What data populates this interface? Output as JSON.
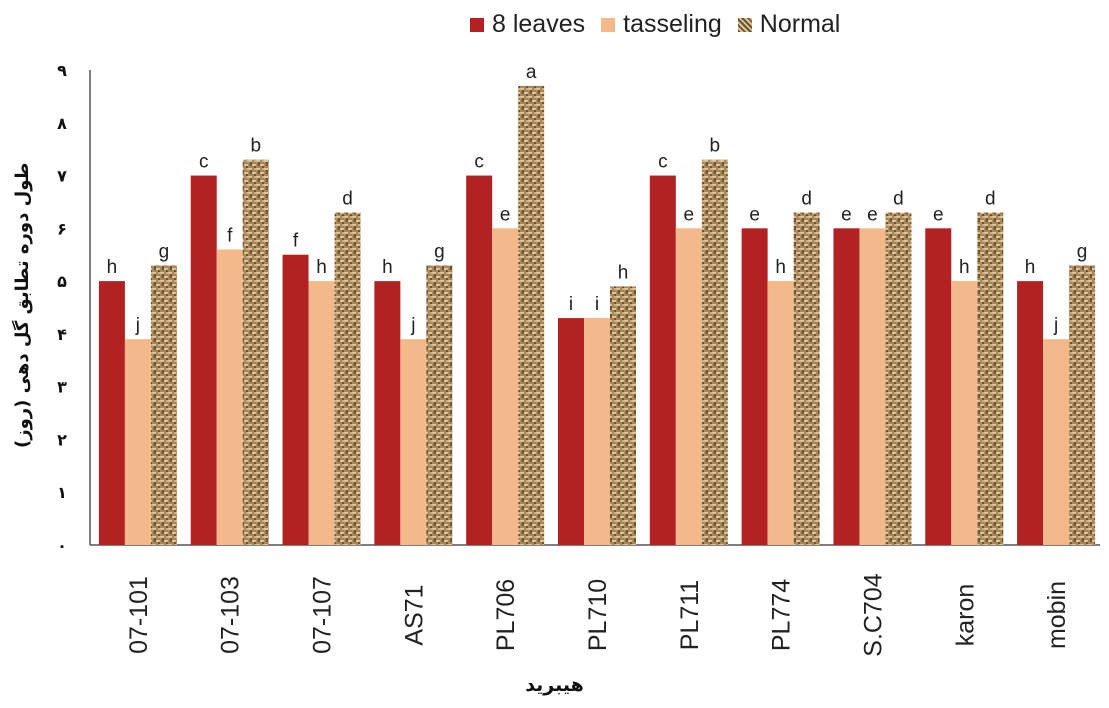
{
  "chart_data": {
    "type": "bar",
    "categories": [
      "07-101",
      "07-103",
      "07-107",
      "AS71",
      "PL706",
      "PL710",
      "PL711",
      "PL774",
      "S.C704",
      "karon",
      "mobin"
    ],
    "series": [
      {
        "name": "8 leaves",
        "color": "#B22222",
        "values": [
          5.0,
          7.0,
          5.5,
          5.0,
          7.0,
          4.3,
          7.0,
          6.0,
          6.0,
          6.0,
          5.0
        ],
        "labels": [
          "h",
          "c",
          "f",
          "h",
          "c",
          "i",
          "c",
          "e",
          "e",
          "e",
          "h"
        ]
      },
      {
        "name": "tasseling",
        "color": "#F4B98A",
        "values": [
          3.9,
          5.6,
          5.0,
          3.9,
          6.0,
          4.3,
          6.0,
          5.0,
          6.0,
          5.0,
          3.9
        ],
        "labels": [
          "j",
          "f",
          "h",
          "j",
          "e",
          "i",
          "e",
          "h",
          "e",
          "h",
          "j"
        ]
      },
      {
        "name": "Normal",
        "color": "#A8875A",
        "pattern": "woven",
        "values": [
          5.3,
          7.3,
          6.3,
          5.3,
          8.7,
          4.9,
          7.3,
          6.3,
          6.3,
          6.3,
          5.3
        ],
        "labels": [
          "g",
          "b",
          "d",
          "g",
          "a",
          "h",
          "b",
          "d",
          "d",
          "d",
          "g"
        ]
      }
    ],
    "ylim": [
      0,
      9
    ],
    "yticks": [
      "۰",
      "۱",
      "۲",
      "۳",
      "۴",
      "۵",
      "۶",
      "۷",
      "۸",
      "۹"
    ],
    "ylabel": "طول دوره تطابق گل دهی (روز)",
    "xlabel": "هیبرید",
    "grid": false,
    "legend": "top"
  }
}
